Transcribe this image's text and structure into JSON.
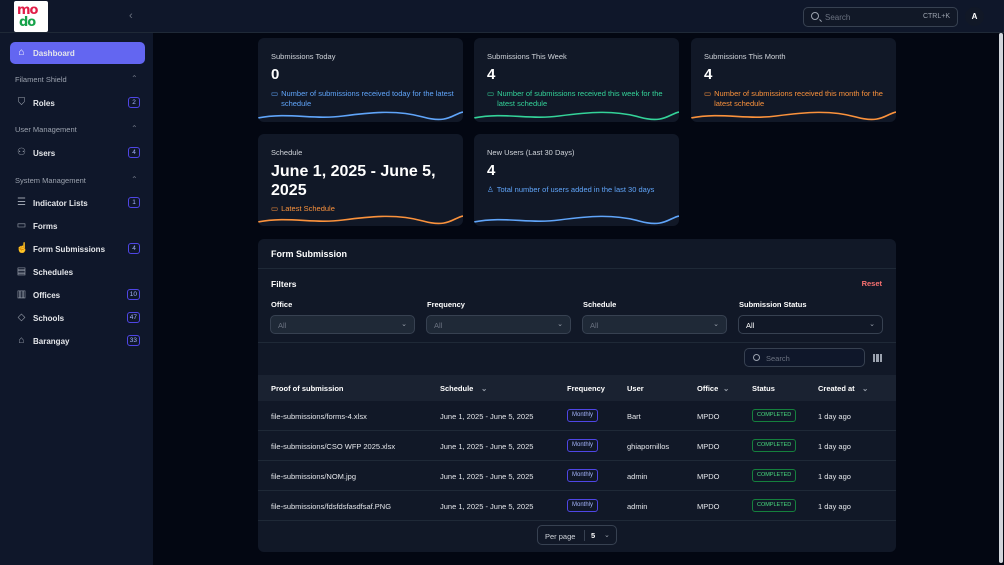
{
  "topbar": {
    "search_placeholder": "Search",
    "shortcut": "CTRL+K",
    "avatar_initial": "A",
    "logo_top": "mo",
    "logo_bottom": "do"
  },
  "sidebar": {
    "dashboard": "Dashboard",
    "groups": [
      "Filament Shield",
      "User Management",
      "System Management"
    ],
    "items": [
      {
        "label": "Roles",
        "badge": "2"
      },
      {
        "label": "Users",
        "badge": "4"
      },
      {
        "label": "Indicator Lists",
        "badge": "1"
      },
      {
        "label": "Forms",
        "badge": ""
      },
      {
        "label": "Form Submissions",
        "badge": "4"
      },
      {
        "label": "Schedules",
        "badge": ""
      },
      {
        "label": "Offices",
        "badge": "10"
      },
      {
        "label": "Schools",
        "badge": "47"
      },
      {
        "label": "Barangay",
        "badge": "33"
      }
    ]
  },
  "stats": [
    {
      "title": "Submissions Today",
      "value": "0",
      "desc": "Number of submissions received today for the latest schedule",
      "color": "#60a5fa"
    },
    {
      "title": "Submissions This Week",
      "value": "4",
      "desc": "Number of submissions received this week for the latest schedule",
      "color": "#34d399"
    },
    {
      "title": "Submissions This Month",
      "value": "4",
      "desc": "Number of submissions received this month for the latest schedule",
      "color": "#fb923c"
    },
    {
      "title": "Schedule",
      "value": "June 1, 2025 - June 5, 2025",
      "desc": "Latest Schedule",
      "color": "#fb923c"
    },
    {
      "title": "New Users (Last 30 Days)",
      "value": "4",
      "desc": "Total number of users added in the last 30 days",
      "color": "#60a5fa"
    }
  ],
  "form_submission": {
    "title": "Form Submission",
    "filters_title": "Filters",
    "reset": "Reset",
    "filters": [
      {
        "label": "Office",
        "value": "All"
      },
      {
        "label": "Frequency",
        "value": "All"
      },
      {
        "label": "Schedule",
        "value": "All"
      },
      {
        "label": "Submission Status",
        "value": "All"
      }
    ],
    "search_placeholder": "Search",
    "columns": [
      "Proof of submission",
      "Schedule",
      "Frequency",
      "User",
      "Office",
      "Status",
      "Created at"
    ],
    "rows": [
      {
        "file": "file-submissions/forms-4.xlsx",
        "schedule": "June 1, 2025 - June 5, 2025",
        "frequency": "Monthly",
        "user": "Bart",
        "office": "MPDO",
        "status": "COMPLETED",
        "created": "1 day ago"
      },
      {
        "file": "file-submissions/CSO WFP 2025.xlsx",
        "schedule": "June 1, 2025 - June 5, 2025",
        "frequency": "Monthly",
        "user": "ghiapornillos",
        "office": "MPDO",
        "status": "COMPLETED",
        "created": "1 day ago"
      },
      {
        "file": "file-submissions/NOM.jpg",
        "schedule": "June 1, 2025 - June 5, 2025",
        "frequency": "Monthly",
        "user": "admin",
        "office": "MPDO",
        "status": "COMPLETED",
        "created": "1 day ago"
      },
      {
        "file": "file-submissions/fdsfdsfasdfsaf.PNG",
        "schedule": "June 1, 2025 - June 5, 2025",
        "frequency": "Monthly",
        "user": "admin",
        "office": "MPDO",
        "status": "COMPLETED",
        "created": "1 day ago"
      }
    ],
    "per_page_label": "Per page",
    "per_page_value": "5"
  }
}
